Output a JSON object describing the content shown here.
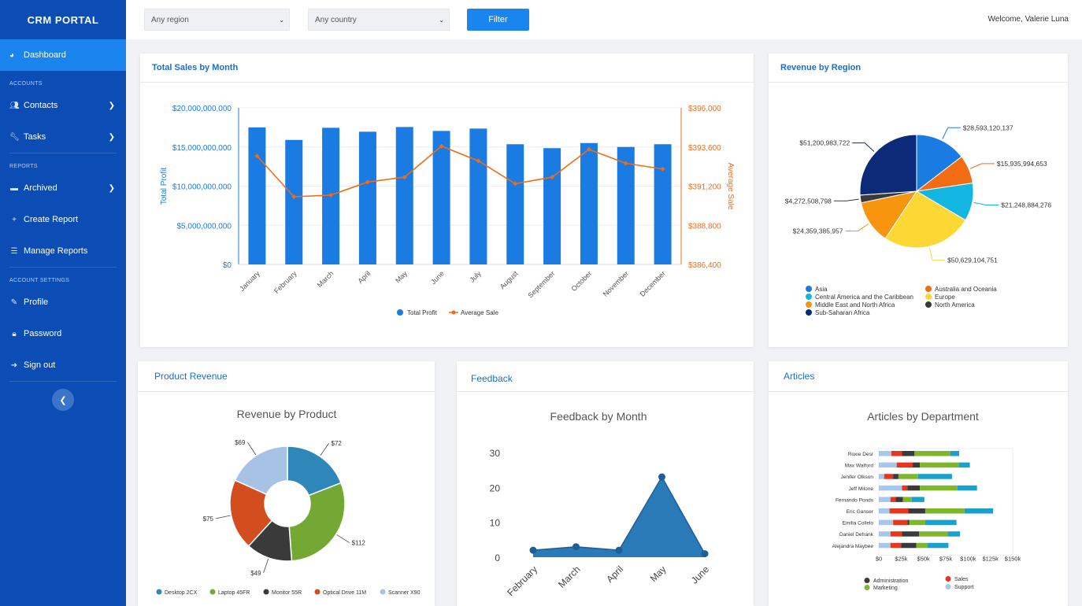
{
  "app": {
    "brand": "CRM PORTAL",
    "welcome": "Welcome, Valerie Luna"
  },
  "sidebar": {
    "dashboard": "Dashboard",
    "section_accounts": "ACCOUNTS",
    "contacts": "Contacts",
    "tasks": "Tasks",
    "section_reports": "REPORTS",
    "archived": "Archived",
    "create_report": "Create Report",
    "manage_reports": "Manage Reports",
    "section_settings": "ACCOUNT SETTINGS",
    "profile": "Profile",
    "password": "Password",
    "sign_out": "Sign out"
  },
  "filters": {
    "region": "Any region",
    "country": "Any country",
    "filter_label": "Filter"
  },
  "cards": {
    "sales": "Total Sales by Month",
    "region": "Revenue by Region",
    "product": "Product Revenue",
    "feedback": "Feedback",
    "articles": "Articles"
  },
  "colors": {
    "sidebar": "#0b4db5",
    "accent": "#1a84ef",
    "orange": "#f26c14"
  },
  "chart_data": [
    {
      "type": "bar",
      "title": "",
      "categories": [
        "January",
        "February",
        "March",
        "April",
        "May",
        "June",
        "July",
        "August",
        "September",
        "October",
        "November",
        "December"
      ],
      "series": [
        {
          "name": "Total Profit",
          "values": [
            17500000000,
            15900000000,
            17450000000,
            16950000000,
            17550000000,
            17050000000,
            17350000000,
            15350000000,
            14850000000,
            15500000000,
            15000000000,
            15350000000
          ],
          "axis": "left",
          "color": "#1a7be3"
        },
        {
          "name": "Average Sale",
          "type": "line",
          "values": [
            393050,
            390550,
            390650,
            391450,
            391750,
            393650,
            392750,
            391350,
            391750,
            393450,
            392600,
            392250
          ],
          "axis": "right",
          "color": "#f26c14"
        }
      ],
      "ylabel": "Total Profit",
      "y2label": "Average Sale",
      "ylim": [
        0,
        20000000000
      ],
      "y2lim": [
        386400,
        396000
      ],
      "yticks": [
        "$0",
        "$5,000,000,000",
        "$10,000,000,000",
        "$15,000,000,000",
        "$20,000,000,000"
      ],
      "y2ticks": [
        "$386,400",
        "$388,800",
        "$391,200",
        "$393,600",
        "$396,000"
      ],
      "legend": "bottom"
    },
    {
      "type": "pie",
      "title": "",
      "labels": [
        "Asia",
        "Australia and Oceania",
        "Central America and the Caribbean",
        "Europe",
        "Middle East and North Africa",
        "North America",
        "Sub-Saharan Africa"
      ],
      "values": [
        28593120137,
        15935994653,
        21248884276,
        50629104751,
        24359385957,
        4272508798,
        51200983722
      ],
      "value_labels": [
        "$28,593,120,137",
        "$15,935,994,653",
        "$21,248,884,276",
        "$50,629,104,751",
        "$24,359,385,957",
        "$4,272,508,798",
        "$51,200,983,722"
      ],
      "colors": [
        "#1a7be3",
        "#f26c14",
        "#13b6e0",
        "#fdd835",
        "#f7950f",
        "#3a3a3a",
        "#0d2a78"
      ],
      "legend": "bottom"
    },
    {
      "type": "pie",
      "title": "Revenue by Product",
      "labels": [
        "Desktop 2CX",
        "Laptop 45FR",
        "Monitor 55R",
        "Optical Drive 11M",
        "Scanner X90"
      ],
      "values": [
        72,
        112,
        49,
        75,
        69
      ],
      "value_labels": [
        "$72",
        "$112",
        "$49",
        "$75",
        "$69"
      ],
      "colors": [
        "#2e86b9",
        "#74a834",
        "#3a3a3a",
        "#d24e1f",
        "#a6c3e6"
      ],
      "legend": "bottom"
    },
    {
      "type": "area",
      "title": "Feedback by Month",
      "categories": [
        "February",
        "March",
        "April",
        "May",
        "June"
      ],
      "values": [
        2,
        3,
        2,
        23,
        1
      ],
      "ylim": [
        0,
        30
      ],
      "yticks": [
        "0",
        "10",
        "20",
        "30"
      ],
      "color": "#2a7ab8"
    },
    {
      "type": "bar",
      "orientation": "horizontal",
      "stacked": true,
      "title": "Articles by Department",
      "categories": [
        "Roxie Desr",
        "Max Walford",
        "Jenifer Olkson",
        "Jeff Milone",
        "Fernando Ponds",
        "Eric Ganser",
        "Emilia Collelo",
        "Daniel Defrank",
        "Alejandra Maybee"
      ],
      "series": [
        {
          "name": "Support",
          "values": [
            14,
            20,
            6,
            26,
            13,
            12,
            16,
            13,
            13
          ],
          "color": "#a6c8ec"
        },
        {
          "name": "Sales",
          "values": [
            12,
            18,
            10,
            6,
            6,
            21,
            16,
            13,
            12
          ],
          "color": "#e8361e"
        },
        {
          "name": "Administration",
          "values": [
            14,
            8,
            6,
            14,
            8,
            19,
            2,
            19,
            17
          ],
          "color": "#3a3a3a"
        },
        {
          "name": "Marketing",
          "values": [
            40,
            44,
            22,
            42,
            10,
            44,
            18,
            32,
            12
          ],
          "color": "#7fb72a"
        },
        {
          "name": "",
          "values": [
            10,
            12,
            38,
            22,
            14,
            32,
            35,
            14,
            24
          ],
          "color": "#1aa1cb"
        }
      ],
      "xlim": [
        0,
        150
      ],
      "xticks": [
        "$0",
        "$25k",
        "$50k",
        "$75k",
        "$100k",
        "$125k",
        "$150k"
      ],
      "legend": "bottom"
    }
  ]
}
